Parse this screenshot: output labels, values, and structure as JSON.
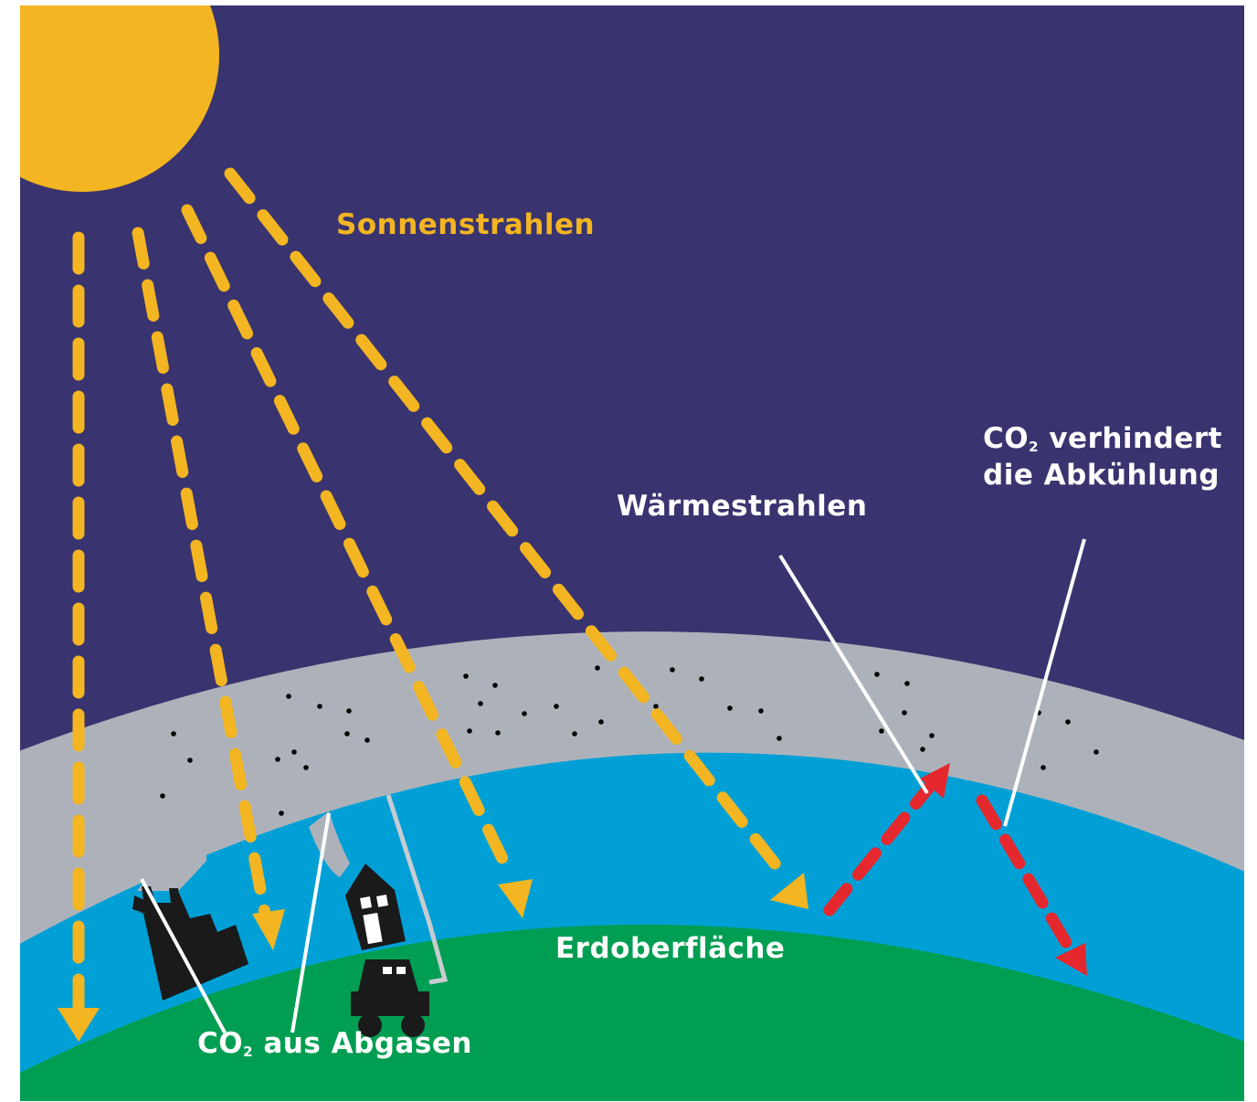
{
  "labels": {
    "sunrays": "Sonnenstrahlen",
    "heat_rays": "Wärmestrahlen",
    "co2_prefix": "CO",
    "co2_sub": "2",
    "co2_block_line1_suffix": " verhindert",
    "co2_block_line2": "die Abkühlung",
    "surface": "Erdoberfläche",
    "exhaust_suffix": " aus Abgasen"
  },
  "colors": {
    "sky": "#39346f",
    "sun": "#f3b521",
    "co2_layer": "#adb2ba",
    "air": "#00a0d7",
    "earth": "#009e52",
    "heat_arrow": "#e5282e",
    "label_text": "#ffffff",
    "buildings": "#1a1a1a"
  },
  "icons": [
    "sun-icon",
    "factory-icon",
    "house-icon",
    "car-icon"
  ]
}
